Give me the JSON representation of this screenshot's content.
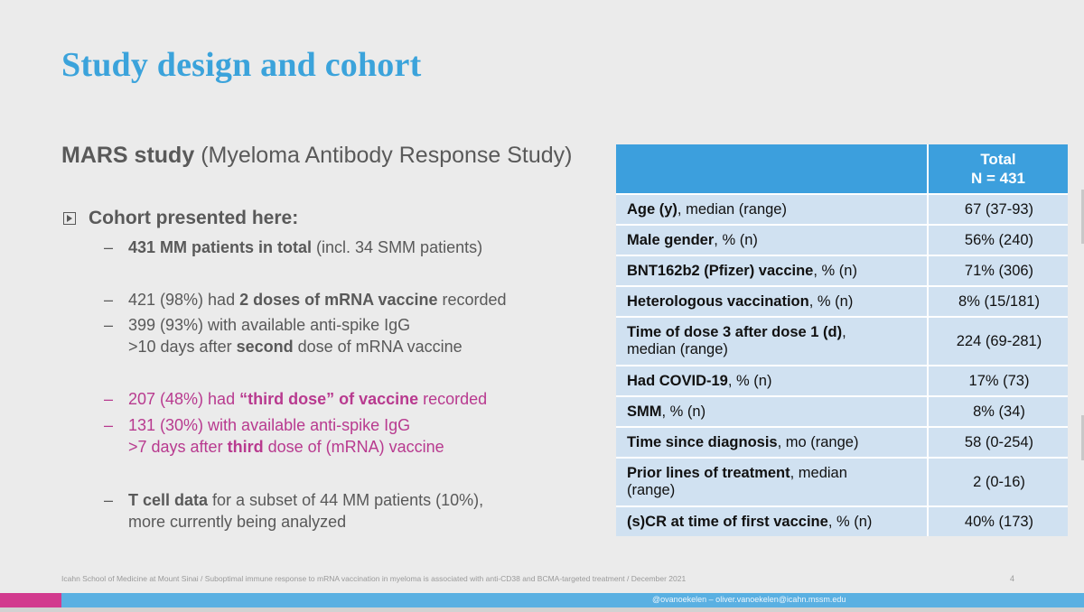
{
  "title": "Study design and cohort",
  "study": {
    "name": "MARS study",
    "full": "(Myeloma Antibody Response Study)"
  },
  "bullet_head": "Cohort presented here:",
  "items": {
    "i1": {
      "dash": "–",
      "bold": "431 MM patients in total",
      "rest": " (incl. 34 SMM patients)"
    },
    "i2": {
      "dash": "–",
      "a": "421 (98%) had ",
      "b": "2 doses of mRNA vaccine",
      "c": " recorded"
    },
    "i3": {
      "dash": "–",
      "a": "399 (93%) with available anti-spike IgG",
      "b": ">10 days after ",
      "c": "second",
      "d": " dose of mRNA vaccine"
    },
    "i4": {
      "dash": "–",
      "a": "207 (48%) had ",
      "b": "“third dose” of vaccine",
      "c": " recorded"
    },
    "i5": {
      "dash": "–",
      "a": "131 (30%) with available anti-spike IgG",
      "b": ">7 days after ",
      "c": "third",
      "d": " dose of (mRNA) vaccine"
    },
    "i6": {
      "dash": "–",
      "bold": "T cell data",
      "rest": " for a subset of 44 MM patients (10%),",
      "line2": "more currently being analyzed"
    }
  },
  "table": {
    "header_total": "Total",
    "header_n": "N = 431",
    "rows": [
      {
        "bold": "Age (y)",
        "rest": ", median (range)",
        "value": "67 (37-93)"
      },
      {
        "bold": "Male gender",
        "rest": ", % (n)",
        "value": "56% (240)"
      },
      {
        "bold": "BNT162b2 (Pfizer) vaccine",
        "rest": ", % (n)",
        "value": "71% (306)"
      },
      {
        "bold": "Heterologous vaccination",
        "rest": ", % (n)",
        "value": "8% (15/181)"
      },
      {
        "bold": "Time of dose 3 after dose 1 (d)",
        "rest": ",",
        "line2": "median (range)",
        "value": "224 (69-281)"
      },
      {
        "bold": "Had COVID-19",
        "rest": ", % (n)",
        "value": "17% (73)"
      },
      {
        "bold": "SMM",
        "rest": ", % (n)",
        "value": "8% (34)"
      },
      {
        "bold": "Time since diagnosis",
        "rest": ", mo (range)",
        "value": "58 (0-254)"
      },
      {
        "bold": "Prior lines of treatment",
        "rest": ", median",
        "line2": "(range)",
        "value": "2 (0-16)"
      },
      {
        "bold": "(s)CR at time of first vaccine",
        "rest": ", % (n)",
        "value": "40% (173)"
      }
    ]
  },
  "footer": "Icahn School of Medicine at Mount Sinai / Suboptimal immune response to mRNA vaccination in myeloma is associated with anti-CD38 and BCMA-targeted treatment / December 2021",
  "page_number": "4",
  "credit": "@ovanoekelen – oliver.vanoekelen@icahn.mssm.edu",
  "colors": {
    "title": "#3ba3db",
    "table_header": "#3c9fdd",
    "table_cell": "#d0e1f1",
    "pink": "#b83a8f"
  }
}
